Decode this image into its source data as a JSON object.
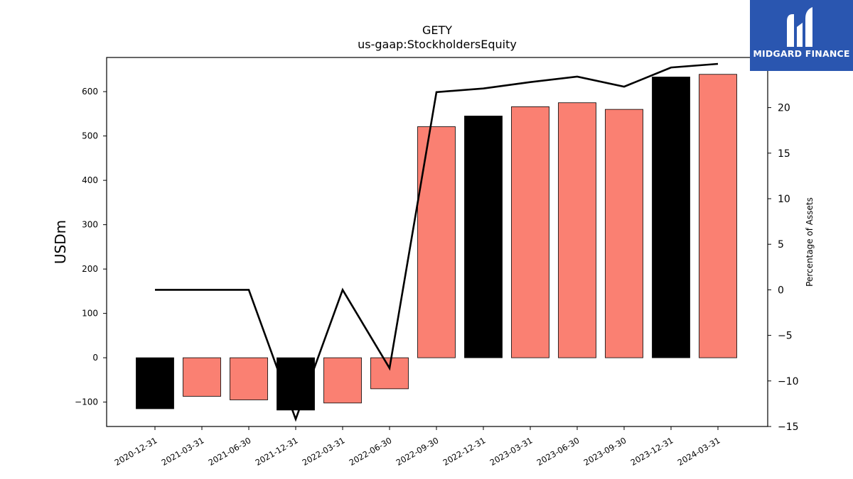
{
  "chart_data": {
    "type": "bar+line",
    "title": "GETY",
    "subtitle": "us-gaap:StockholdersEquity",
    "ylabel": "USDm",
    "y2label": "Percentage of Assets",
    "categories": [
      "2020-12-31",
      "2021-03-31",
      "2021-06-30",
      "2021-12-31",
      "2022-03-31",
      "2022-06-30",
      "2022-09-30",
      "2022-12-31",
      "2023-03-31",
      "2023-06-30",
      "2023-09-30",
      "2023-12-31",
      "2024-03-31"
    ],
    "bars": {
      "values": [
        -115,
        -87,
        -95,
        -118,
        -102,
        -70,
        521,
        545,
        566,
        575,
        560,
        633,
        639
      ],
      "colors": [
        "#000000",
        "#fa8072",
        "#fa8072",
        "#000000",
        "#fa8072",
        "#fa8072",
        "#fa8072",
        "#000000",
        "#fa8072",
        "#fa8072",
        "#fa8072",
        "#000000",
        "#fa8072"
      ]
    },
    "line": {
      "values": [
        0,
        0,
        0,
        -14.2,
        0,
        -8.6,
        21.7,
        22.1,
        22.8,
        23.4,
        22.3,
        24.4,
        24.8
      ],
      "color": "#000000"
    },
    "ylim": [
      -155,
      677
    ],
    "yticks": [
      -100,
      0,
      100,
      200,
      300,
      400,
      500,
      600
    ],
    "y2lim": [
      -15,
      25.5
    ],
    "y2ticks": [
      -15,
      -10,
      -5,
      0,
      5,
      10,
      15,
      20,
      25
    ],
    "y2tick_labels": [
      "−15",
      "−10",
      "−5",
      "0",
      "5",
      "10",
      "15",
      "20",
      "25"
    ],
    "grid": false,
    "legend": "none"
  },
  "logo": {
    "text": "MIDGARD FINANCE"
  }
}
